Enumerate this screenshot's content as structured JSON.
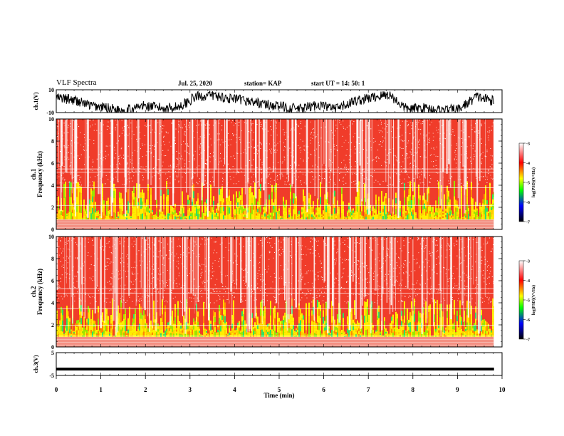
{
  "header": {
    "title": "VLF Spectra",
    "date": "Jul. 25, 2020",
    "station": "station= KAP",
    "start": "start UT = 14: 50: 1"
  },
  "chart_data": [
    {
      "type": "line",
      "name": "ch1-waveform",
      "ylabel": "ch.1(V)",
      "ylim": [
        -10,
        10
      ],
      "yticks": [
        "10",
        "-10"
      ],
      "x_range_min": [
        0,
        9.82
      ],
      "trend": [
        3,
        1,
        -4,
        -6,
        -8,
        -4,
        -6,
        -5,
        4,
        5,
        2,
        0,
        -3,
        -5,
        -7,
        -3,
        -7,
        0,
        3,
        6,
        -7,
        -6,
        -8,
        -7,
        4,
        0
      ]
    },
    {
      "type": "heatmap",
      "name": "ch1-spectrogram",
      "ylabel": "ch.1\nFrequency (kHz)",
      "ylim": [
        0,
        10
      ],
      "yticks": [
        "0",
        "2",
        "4",
        "6",
        "8",
        "10"
      ],
      "colorbar": {
        "label": "log(PSD)(V²/Hz)",
        "range": [
          -7,
          -3
        ],
        "ticks": [
          "-3",
          "-4",
          "-5",
          "-6",
          "-7"
        ],
        "colors": [
          "#ffffff",
          "#ff0000",
          "#ffff00",
          "#00ff00",
          "#0000ff",
          "#000000"
        ]
      }
    },
    {
      "type": "heatmap",
      "name": "ch2-spectrogram",
      "ylabel": "ch.2\nFrequency (kHz)",
      "ylim": [
        0,
        10
      ],
      "yticks": [
        "0",
        "2",
        "4",
        "6",
        "8",
        "10"
      ],
      "colorbar": {
        "label": "log(PSD)(V²/Hz)",
        "range": [
          -7,
          -3
        ],
        "ticks": [
          "-3",
          "-4",
          "-5",
          "-6",
          "-7"
        ],
        "colors": [
          "#ffffff",
          "#ff0000",
          "#ffff00",
          "#00ff00",
          "#0000ff",
          "#000000"
        ]
      }
    },
    {
      "type": "line",
      "name": "ch3-waveform",
      "ylabel": "ch.3(V)",
      "ylim": [
        -5,
        5
      ],
      "yticks": [
        "5",
        "-5"
      ],
      "x_range_min": [
        0,
        9.82
      ],
      "level_approx": -2.2
    }
  ],
  "xaxis": {
    "label": "Time (min)",
    "range": [
      0,
      10
    ],
    "ticks": [
      "0",
      "1",
      "2",
      "3",
      "4",
      "5",
      "6",
      "7",
      "8",
      "9",
      "10"
    ]
  }
}
